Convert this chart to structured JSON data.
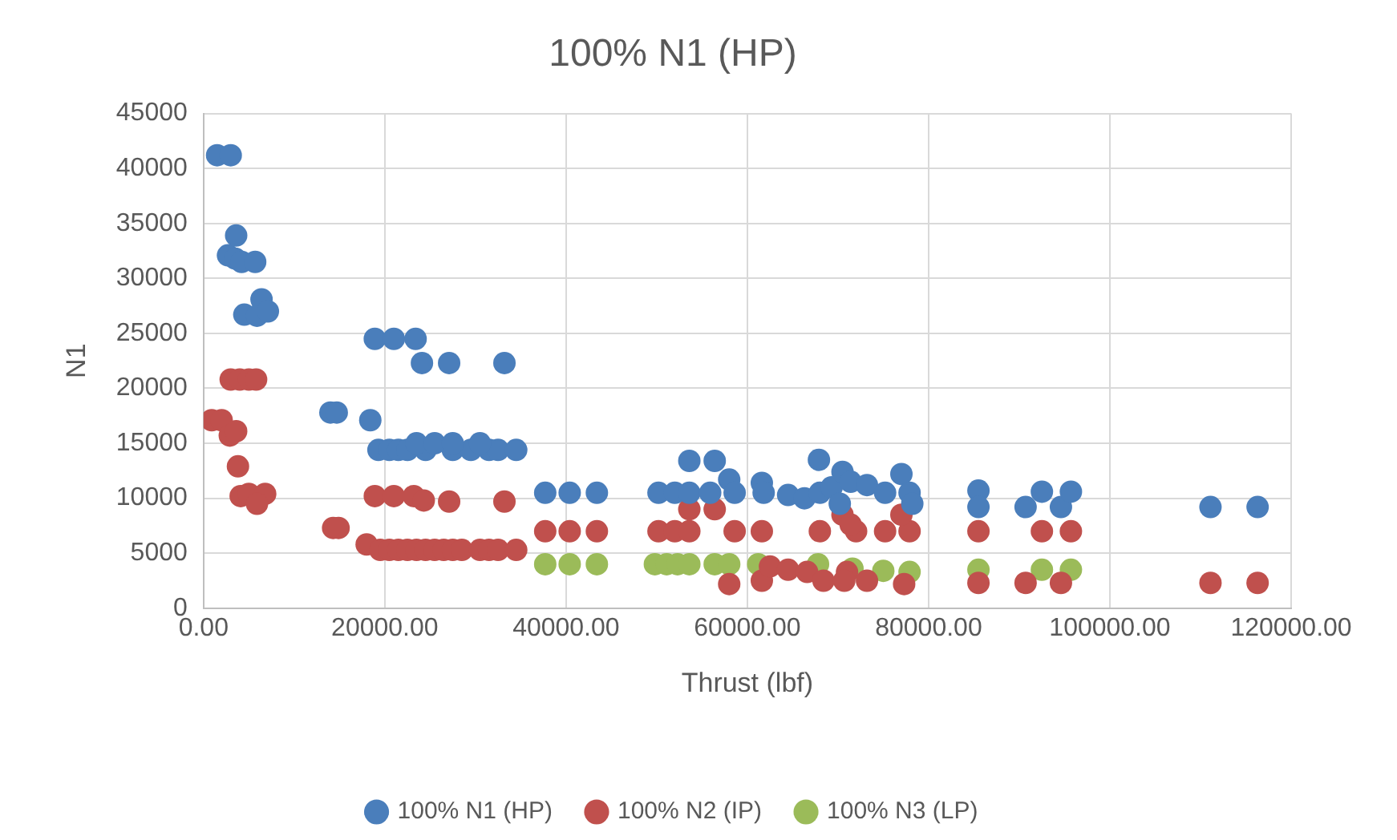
{
  "chart_data": {
    "type": "scatter",
    "title": "100% N1 (HP)",
    "xlabel": "Thrust (lbf)",
    "ylabel": "N1",
    "xlim": [
      0,
      120000
    ],
    "ylim": [
      0,
      45000
    ],
    "xticks": [
      {
        "value": 0,
        "label": "0.00"
      },
      {
        "value": 20000,
        "label": "20000.00"
      },
      {
        "value": 40000,
        "label": "40000.00"
      },
      {
        "value": 60000,
        "label": "60000.00"
      },
      {
        "value": 80000,
        "label": "80000.00"
      },
      {
        "value": 100000,
        "label": "100000.00"
      },
      {
        "value": 120000,
        "label": "120000.00"
      }
    ],
    "yticks": [
      0,
      5000,
      10000,
      15000,
      20000,
      25000,
      30000,
      35000,
      40000,
      45000
    ],
    "grid": true,
    "legend": "bottom",
    "marker": "circle",
    "series": [
      {
        "name": "100% N1 (HP)",
        "color": "#4a7ebb",
        "x": [
          1500,
          3000,
          2700,
          3600,
          3500,
          4200,
          5700,
          6400,
          4500,
          5900,
          7100,
          18900,
          21000,
          23400,
          24100,
          27100,
          33200,
          14000,
          14700,
          18400,
          19300,
          20500,
          21500,
          22500,
          24500,
          27500,
          29500,
          31500,
          32500,
          34500,
          23500,
          25500,
          27500,
          30500,
          37700,
          40400,
          43400,
          50200,
          52000,
          53600,
          53600,
          56400,
          55900,
          58000,
          58600,
          61600,
          61800,
          64500,
          66300,
          67900,
          68000,
          69300,
          70500,
          71400,
          73200,
          75200,
          77000,
          77900,
          78200,
          70200,
          85500,
          85500,
          90700,
          92500,
          94600,
          95700,
          111100,
          116300
        ],
        "values": [
          41200,
          41200,
          32100,
          33900,
          31800,
          31500,
          31500,
          28100,
          26700,
          26600,
          27000,
          24500,
          24500,
          24500,
          22300,
          22300,
          22300,
          17800,
          17800,
          17100,
          14400,
          14400,
          14400,
          14400,
          14400,
          14400,
          14400,
          14400,
          14400,
          14400,
          15000,
          15000,
          15000,
          15000,
          10500,
          10500,
          10500,
          10500,
          10500,
          10500,
          13400,
          13400,
          10500,
          11700,
          10500,
          11400,
          10500,
          10300,
          10000,
          13500,
          10500,
          11000,
          12400,
          11500,
          11200,
          10500,
          12200,
          10500,
          9500,
          9500,
          10700,
          9200,
          9200,
          10600,
          9200,
          10600,
          9200,
          9200
        ]
      },
      {
        "name": "100% N2 (IP)",
        "color": "#c0504d",
        "x": [
          900,
          2000,
          2900,
          3600,
          3000,
          4000,
          5000,
          5800,
          3800,
          4100,
          5000,
          6800,
          5900,
          14300,
          14900,
          18900,
          21000,
          23200,
          24300,
          27100,
          33200,
          18000,
          19500,
          20500,
          21500,
          22500,
          23500,
          24500,
          25500,
          26500,
          27500,
          28500,
          30500,
          31500,
          32500,
          34500,
          37700,
          40400,
          43400,
          50200,
          52000,
          53600,
          58600,
          61600,
          68000,
          72000,
          75200,
          77900,
          53600,
          56400,
          70500,
          71400,
          77000,
          58000,
          61600,
          62500,
          64500,
          66600,
          68400,
          71000,
          70700,
          73200,
          77300,
          85500,
          90700,
          94600,
          85500,
          92500,
          95700,
          111100,
          116300
        ],
        "values": [
          17100,
          17100,
          15700,
          16100,
          20800,
          20800,
          20800,
          20800,
          12900,
          10200,
          10400,
          10400,
          9500,
          7300,
          7300,
          10200,
          10200,
          10200,
          9800,
          9700,
          9700,
          5800,
          5300,
          5300,
          5300,
          5300,
          5300,
          5300,
          5300,
          5300,
          5300,
          5300,
          5300,
          5300,
          5300,
          5300,
          7000,
          7000,
          7000,
          7000,
          7000,
          7000,
          7000,
          7000,
          7000,
          7000,
          7000,
          7000,
          9000,
          9000,
          8500,
          7600,
          8500,
          2200,
          2500,
          3800,
          3500,
          3300,
          2500,
          3300,
          2500,
          2500,
          2200,
          2300,
          2300,
          2300,
          7000,
          7000,
          7000,
          2300,
          2300
        ]
      },
      {
        "name": "100% N3 (LP)",
        "color": "#9bbb59",
        "x": [
          37700,
          40400,
          43400,
          49800,
          51100,
          52300,
          53600,
          56400,
          58000,
          61200,
          67800,
          71600,
          75000,
          77900,
          85500,
          92500,
          95700
        ],
        "values": [
          4000,
          4000,
          4000,
          4000,
          4000,
          4000,
          4000,
          4000,
          4000,
          4000,
          4000,
          3600,
          3400,
          3300,
          3500,
          3500,
          3500
        ]
      }
    ]
  }
}
